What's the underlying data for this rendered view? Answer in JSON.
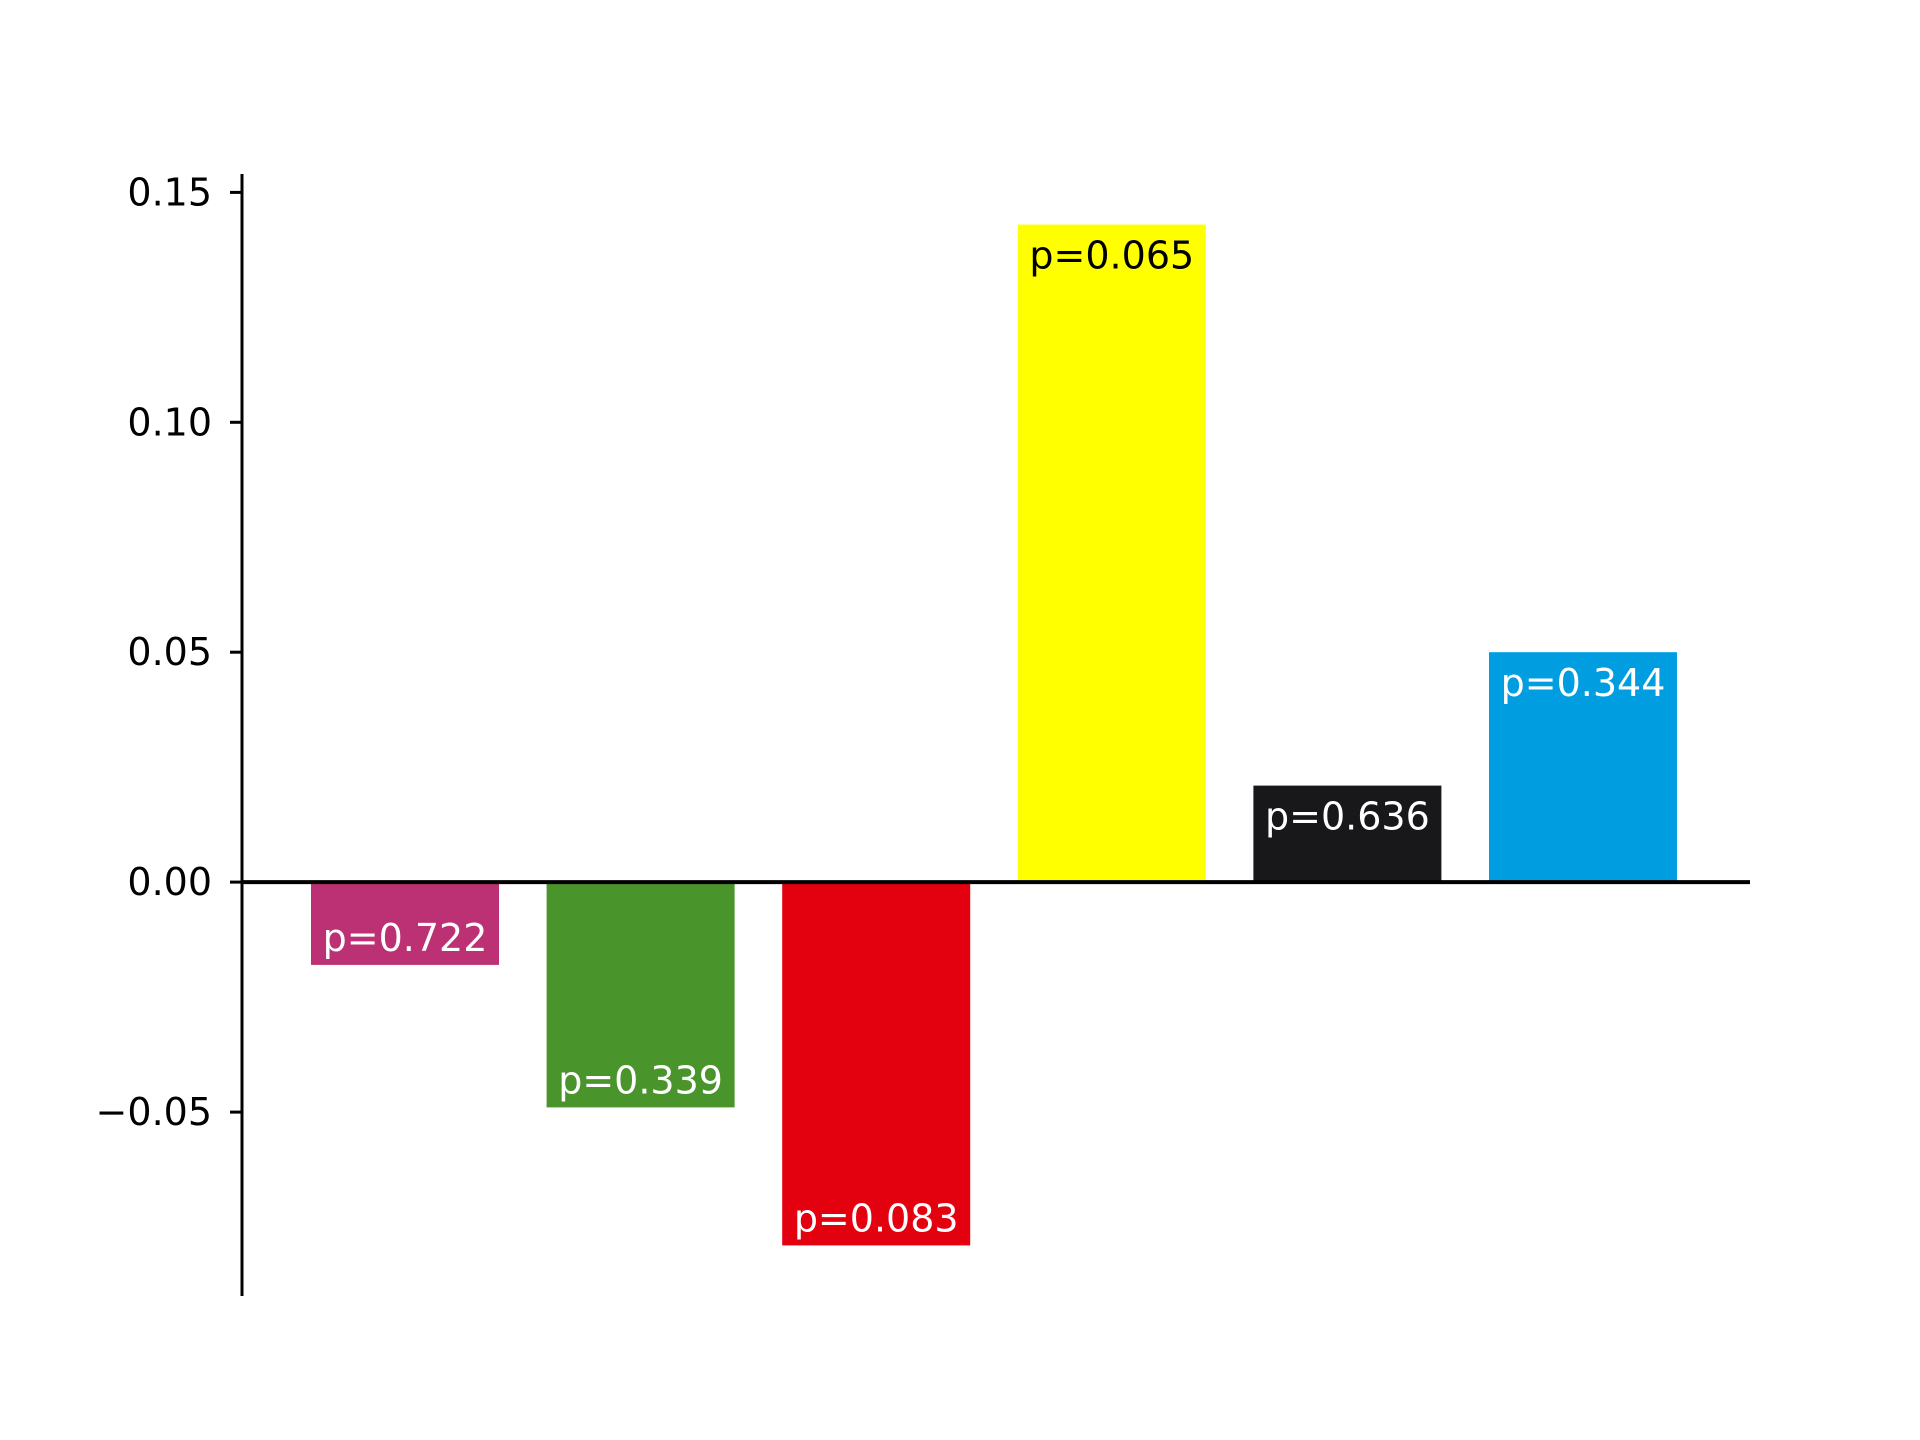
{
  "chart_data": {
    "type": "bar",
    "title": "",
    "xlabel": "",
    "ylabel": "",
    "ylim": [
      -0.09,
      0.154
    ],
    "yticks": [
      -0.05,
      0.0,
      0.05,
      0.1,
      0.15
    ],
    "ytick_labels": [
      "−0.05",
      "0.00",
      "0.05",
      "0.10",
      "0.15"
    ],
    "grid": false,
    "bars": [
      {
        "value": -0.018,
        "label": "p=0.722",
        "color": "#bc3173",
        "label_color": "#ffffff"
      },
      {
        "value": -0.049,
        "label": "p=0.339",
        "color": "#4a942c",
        "label_color": "#ffffff"
      },
      {
        "value": -0.079,
        "label": "p=0.083",
        "color": "#e3000f",
        "label_color": "#ffffff"
      },
      {
        "value": 0.143,
        "label": "p=0.065",
        "color": "#ffff00",
        "label_color": "#000000"
      },
      {
        "value": 0.021,
        "label": "p=0.636",
        "color": "#18181a",
        "label_color": "#ffffff"
      },
      {
        "value": 0.05,
        "label": "p=0.344",
        "color": "#009ee0",
        "label_color": "#ffffff"
      }
    ]
  }
}
